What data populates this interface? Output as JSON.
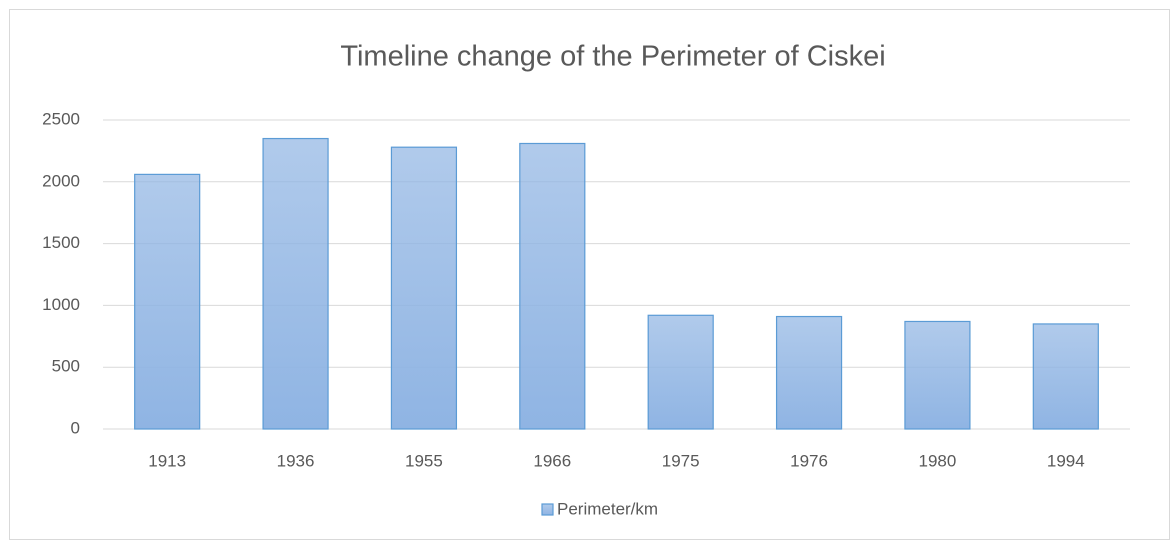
{
  "chart_data": {
    "type": "bar",
    "title": "Timeline change of the Perimeter of Ciskei",
    "categories": [
      "1913",
      "1936",
      "1955",
      "1966",
      "1975",
      "1976",
      "1980",
      "1994"
    ],
    "series": [
      {
        "name": "Perimeter/km",
        "color": "#8fb4e3",
        "values": [
          2060,
          2350,
          2280,
          2310,
          920,
          910,
          870,
          850
        ]
      }
    ],
    "ylim": [
      0,
      2500
    ],
    "yticks": [
      0,
      500,
      1000,
      1500,
      2000,
      2500
    ],
    "grid": true,
    "legend": "bottom"
  }
}
